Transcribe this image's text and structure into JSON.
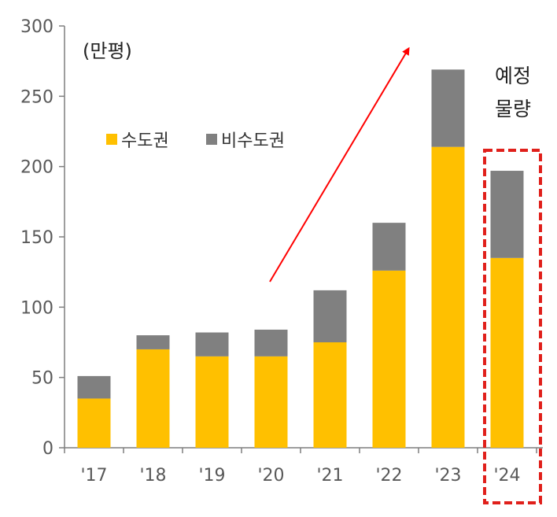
{
  "chart_data": {
    "type": "bar",
    "stacked": true,
    "unit_label": "(만평)",
    "categories": [
      "'17",
      "'18",
      "'19",
      "'20",
      "'21",
      "'22",
      "'23",
      "'24"
    ],
    "series": [
      {
        "name": "수도권",
        "color": "#FFC000",
        "values": [
          35,
          70,
          65,
          65,
          75,
          126,
          214,
          135
        ]
      },
      {
        "name": "비수도권",
        "color": "#808080",
        "values": [
          16,
          10,
          17,
          19,
          37,
          34,
          55,
          62
        ]
      }
    ],
    "ylim": [
      0,
      300
    ],
    "yticks": [
      0,
      50,
      100,
      150,
      200,
      250,
      300
    ],
    "legend": "top-left",
    "grid": false,
    "annotations": {
      "projected_label_line1": "예정",
      "projected_label_line2": "물량",
      "highlight_category": "'24",
      "highlight_color": "#E0201B",
      "trend_arrow_color": "#FF0000"
    }
  }
}
